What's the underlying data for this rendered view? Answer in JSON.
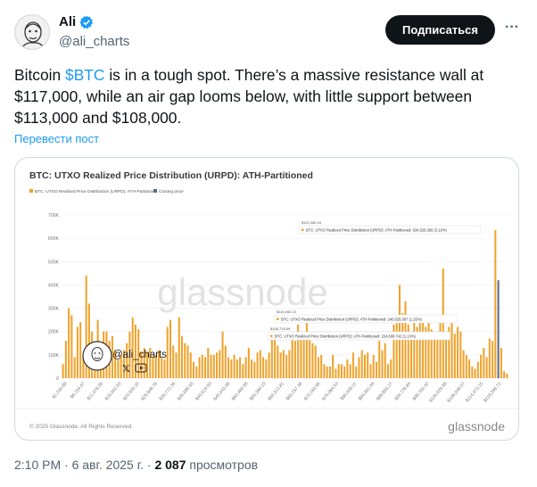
{
  "author": {
    "name": "Ali",
    "handle": "@ali_charts",
    "follow_label": "Подписаться",
    "more_label": "···"
  },
  "tweet": {
    "text_pre": "Bitcoin ",
    "cashtag": "$BTC",
    "text_post": " is in a tough spot. There’s a massive resistance wall at $117,000, while an air gap looms below, with little support between $113,000 and $108,000.",
    "translate_label": "Перевести пост"
  },
  "footer": {
    "time": "2:10 PM",
    "sep1": " · ",
    "date": "6 авг. 2025 г.",
    "sep2": " · ",
    "views_count": "2 087",
    "views_label": " просмотров"
  },
  "colors": {
    "bar": "#f0a22a",
    "closing": "#5a6b86",
    "link": "#1d9bf0"
  },
  "chart_data": {
    "type": "bar",
    "title": "BTC: UTXO Realized Price Distribution (URPD): ATH-Partitioned",
    "legend": [
      {
        "label": "BTC: UTXO Realized Price Distribution (URPD): ATH-Partitioned",
        "color": "#f0a22a"
      },
      {
        "label": "Closing price",
        "color": "#5a6b86"
      }
    ],
    "legend_placement": "top-left",
    "watermark": "glassnode",
    "overlay_handle": "@ali_charts",
    "copyright": "© 2025 Glassnode. All Rights Reserved.",
    "footer_logo": "glassnode",
    "ylim": [
      0,
      700000
    ],
    "y_ticks": [
      "0",
      "100K",
      "200K",
      "300K",
      "400K",
      "500K",
      "600K",
      "700K"
    ],
    "x_ticks": [
      "$1,230.89",
      "$6,154.47",
      "$11,078.05",
      "$16,001.63",
      "$20,925.20",
      "$25,848.78",
      "$30,772.36",
      "$35,695.93",
      "$40,619.50",
      "$45,543.08",
      "$50,466.66",
      "$55,390.23",
      "$60,313.81",
      "$65,237.38",
      "$70,160.96",
      "$75,084.53",
      "$80,008.11",
      "$84,931.69",
      "$89,855.27",
      "$94,778.84",
      "$99,702.42",
      "$104,625.99",
      "$109,549.57",
      "$114,473.15",
      "$119,396.72"
    ],
    "values": [
      60000,
      160000,
      300000,
      270000,
      90000,
      220000,
      240000,
      100000,
      440000,
      320000,
      200000,
      130000,
      250000,
      110000,
      200000,
      200000,
      160000,
      180000,
      120000,
      80000,
      100000,
      120000,
      150000,
      200000,
      260000,
      230000,
      210000,
      110000,
      130000,
      110000,
      130000,
      90000,
      100000,
      120000,
      90000,
      80000,
      220000,
      250000,
      140000,
      110000,
      260000,
      180000,
      150000,
      140000,
      110000,
      70000,
      50000,
      90000,
      100000,
      90000,
      130000,
      100000,
      100000,
      110000,
      120000,
      200000,
      140000,
      90000,
      80000,
      100000,
      80000,
      90000,
      60000,
      90000,
      130000,
      80000,
      70000,
      110000,
      120000,
      90000,
      80000,
      110000,
      190000,
      200000,
      140000,
      110000,
      120000,
      100000,
      120000,
      170000,
      160000,
      230000,
      200000,
      180000,
      240000,
      190000,
      150000,
      140000,
      90000,
      100000,
      60000,
      50000,
      50000,
      100000,
      40000,
      60000,
      60000,
      50000,
      80000,
      60000,
      110000,
      50000,
      90000,
      120000,
      100000,
      110000,
      60000,
      100000,
      70000,
      160000,
      120000,
      150000,
      60000,
      80000,
      230000,
      240000,
      400000,
      280000,
      330000,
      230000,
      200000,
      260000,
      220000,
      270000,
      240000,
      220000,
      250000,
      210000,
      180000,
      200000,
      260000,
      470000,
      200000,
      220000,
      240000,
      190000,
      220000,
      200000,
      120000,
      100000,
      80000,
      50000,
      40000,
      70000,
      100000,
      130000,
      90000,
      170000,
      160000,
      634925,
      420000,
      130000,
      30000,
      20000
    ],
    "closing_price_index": 150,
    "annotations": [
      {
        "price": "$119,350.93",
        "text": "BTC: UTXO Realized Price Distribution (URPD): ATH-Partitioned: 634,925.395 (3.19%)"
      },
      {
        "price": "$115,000.23",
        "text": "BTC: UTXO Realized Price Distribution (URPD): ATH-Partitioned: 240,025.087 (1.25%)"
      },
      {
        "price": "$108,718.69",
        "text": "BTC: UTXO Realized Price Distribution (URPD): ATH-Partitioned: 224,608.742 (1.13%)"
      }
    ]
  }
}
